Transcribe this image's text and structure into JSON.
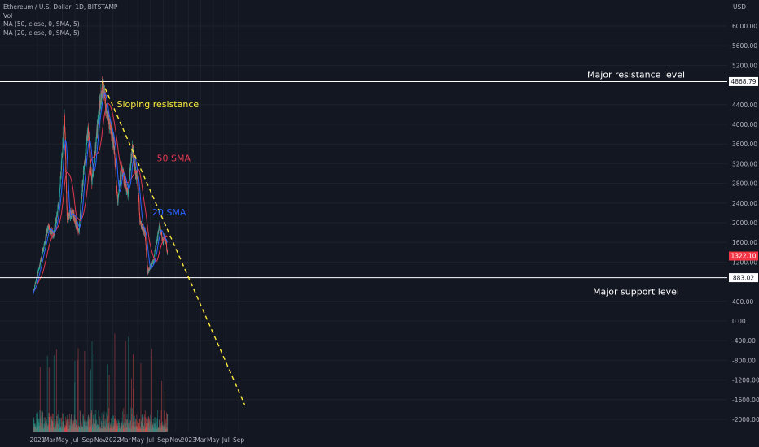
{
  "legend": {
    "symbol": "Ethereum / U.S. Dollar, 1D, BITSTAMP",
    "vol": "Vol",
    "ma50": "MA (50, close, 0, SMA, 5)",
    "ma20": "MA (20, close, 0, SMA, 5)"
  },
  "colors": {
    "background": "#131722",
    "up": "#26a69a",
    "down": "#ef5350",
    "sma50": "#e0384f",
    "sma20": "#2962ff",
    "trendline": "#ffeb3b",
    "price_label": "#f23645"
  },
  "chart_data": {
    "type": "candlestick",
    "currency_label": "USD",
    "y_ticks": [
      "6000.00",
      "5600.00",
      "5200.00",
      "4400.00",
      "4000.00",
      "3600.00",
      "3200.00",
      "2800.00",
      "2400.00",
      "2000.00",
      "1600.00",
      "1200.00",
      "400.00",
      "0.00",
      "-400.00",
      "-800.00",
      "-1200.00",
      "-1600.00",
      "-2000.00"
    ],
    "y_tick_values": [
      6000,
      5600,
      5200,
      4400,
      4000,
      3600,
      3200,
      2800,
      2400,
      2000,
      1600,
      1200,
      400,
      0,
      -400,
      -800,
      -1200,
      -1600,
      -2000
    ],
    "x_ticks": [
      "2021",
      "Mar",
      "May",
      "Jul",
      "Sep",
      "Nov",
      "2022",
      "Mar",
      "May",
      "Jul",
      "Sep",
      "Nov",
      "2023",
      "Mar",
      "May",
      "Jul",
      "Sep"
    ],
    "x_tick_dates": [
      "2021-01-01",
      "2021-03-01",
      "2021-05-01",
      "2021-07-01",
      "2021-09-01",
      "2021-11-01",
      "2022-01-01",
      "2022-03-01",
      "2022-05-01",
      "2022-07-01",
      "2022-09-01",
      "2022-11-01",
      "2023-01-01",
      "2023-03-01",
      "2023-05-01",
      "2023-07-01",
      "2023-09-01"
    ],
    "price_keypoints": [
      {
        "date": "2020-12-10",
        "price": 560
      },
      {
        "date": "2021-01-10",
        "price": 1100
      },
      {
        "date": "2021-02-20",
        "price": 1900
      },
      {
        "date": "2021-03-20",
        "price": 1750
      },
      {
        "date": "2021-04-15",
        "price": 2400
      },
      {
        "date": "2021-05-12",
        "price": 4150
      },
      {
        "date": "2021-05-24",
        "price": 2100
      },
      {
        "date": "2021-06-20",
        "price": 2200
      },
      {
        "date": "2021-07-20",
        "price": 1800
      },
      {
        "date": "2021-08-15",
        "price": 3200
      },
      {
        "date": "2021-09-03",
        "price": 3900
      },
      {
        "date": "2021-09-21",
        "price": 2800
      },
      {
        "date": "2021-10-20",
        "price": 4000
      },
      {
        "date": "2021-11-10",
        "price": 4800
      },
      {
        "date": "2021-12-05",
        "price": 4200
      },
      {
        "date": "2022-01-05",
        "price": 3600
      },
      {
        "date": "2022-01-24",
        "price": 2400
      },
      {
        "date": "2022-02-10",
        "price": 3100
      },
      {
        "date": "2022-03-14",
        "price": 2600
      },
      {
        "date": "2022-04-03",
        "price": 3500
      },
      {
        "date": "2022-05-01",
        "price": 2800
      },
      {
        "date": "2022-05-12",
        "price": 2000
      },
      {
        "date": "2022-06-05",
        "price": 1800
      },
      {
        "date": "2022-06-18",
        "price": 1000
      },
      {
        "date": "2022-07-15",
        "price": 1200
      },
      {
        "date": "2022-08-14",
        "price": 1950
      },
      {
        "date": "2022-09-01",
        "price": 1600
      },
      {
        "date": "2022-09-10",
        "price": 1750
      },
      {
        "date": "2022-09-22",
        "price": 1322
      }
    ],
    "current_price": 1322.1,
    "current_price_label": "1322.10",
    "resistance": {
      "value": 4868.79,
      "label": "4868.79",
      "annotation": "Major resistance level"
    },
    "support": {
      "value": 883.02,
      "label": "883.02",
      "annotation": "Major support level"
    },
    "sloping_resistance": {
      "annotation": "Sloping resistance",
      "start": {
        "date": "2021-11-10",
        "price": 4868.79
      },
      "end": {
        "date": "2023-09-30",
        "price": -1700
      }
    },
    "annotations": [
      {
        "text": "50 SMA",
        "date": "2022-08-01",
        "price": 3300
      },
      {
        "text": "20 SMA",
        "date": "2022-07-10",
        "price": 2200
      }
    ],
    "volume_range": [
      0,
      1
    ]
  }
}
